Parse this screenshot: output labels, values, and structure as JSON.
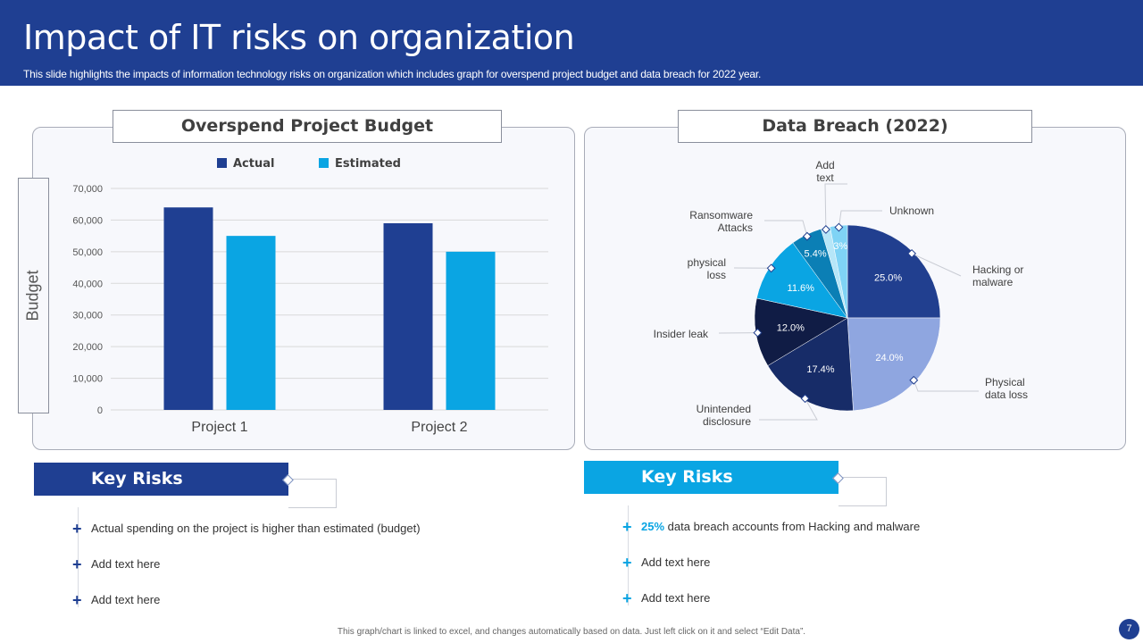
{
  "header": {
    "title": "Impact of IT risks on organization",
    "subtitle": "This slide highlights the impacts of information technology risks on organization which includes graph for overspend project budget and data breach for 2022 year."
  },
  "colors": {
    "navy": "#1f3f92",
    "sky": "#0aa5e3"
  },
  "chart_data": [
    {
      "type": "bar",
      "title": "Overspend Project Budget",
      "ylabel": "Budget",
      "xlabel": "",
      "categories": [
        "Project 1",
        "Project 2"
      ],
      "series": [
        {
          "name": "Actual",
          "values": [
            64000,
            59000
          ],
          "color": "#1f3f92"
        },
        {
          "name": "Estimated",
          "values": [
            55000,
            50000
          ],
          "color": "#0aa5e3"
        }
      ],
      "ylim": [
        0,
        70000
      ],
      "yticks": [
        "0",
        "10,000",
        "20,000",
        "30,000",
        "40,000",
        "50,000",
        "60,000",
        "70,000"
      ],
      "grid": true,
      "legend": "top-center"
    },
    {
      "type": "pie",
      "title": "Data Breach (2022)",
      "slices": [
        {
          "label": "Hacking or malware",
          "value": 25.0,
          "text": "25.0%",
          "color": "#213f8f"
        },
        {
          "label": "Physical data loss",
          "value": 24.0,
          "text": "24.0%",
          "color": "#8fa6e0"
        },
        {
          "label": "Unintended disclosure",
          "value": 17.4,
          "text": "17.4%",
          "color": "#172c68"
        },
        {
          "label": "Insider leak",
          "value": 12.0,
          "text": "12.0%",
          "color": "#101c45"
        },
        {
          "label": "physical loss",
          "value": 11.6,
          "text": "11.6%",
          "color": "#0aa5e3"
        },
        {
          "label": "Ransomware Attacks",
          "value": 5.4,
          "text": "5.4%",
          "color": "#0b7fb5"
        },
        {
          "label": "Add text",
          "value": 1.6,
          "text": "",
          "color": "#b6e6f8"
        },
        {
          "label": "Unknown",
          "value": 3.0,
          "text": "3%",
          "color": "#7fd3f5"
        }
      ]
    }
  ],
  "key_risks": {
    "left": {
      "title": "Key Risks",
      "items": [
        "Actual spending on the project is higher than estimated (budget)",
        "Add text here",
        "Add text here"
      ]
    },
    "right": {
      "title": "Key Risks",
      "highlight": "25%",
      "items": [
        "data breach accounts from Hacking and malware",
        "Add text here",
        "Add text here"
      ]
    }
  },
  "footer": {
    "note": "This graph/chart is linked to excel, and changes automatically based on data. Just left click on it and select “Edit Data”.",
    "page": "7"
  }
}
